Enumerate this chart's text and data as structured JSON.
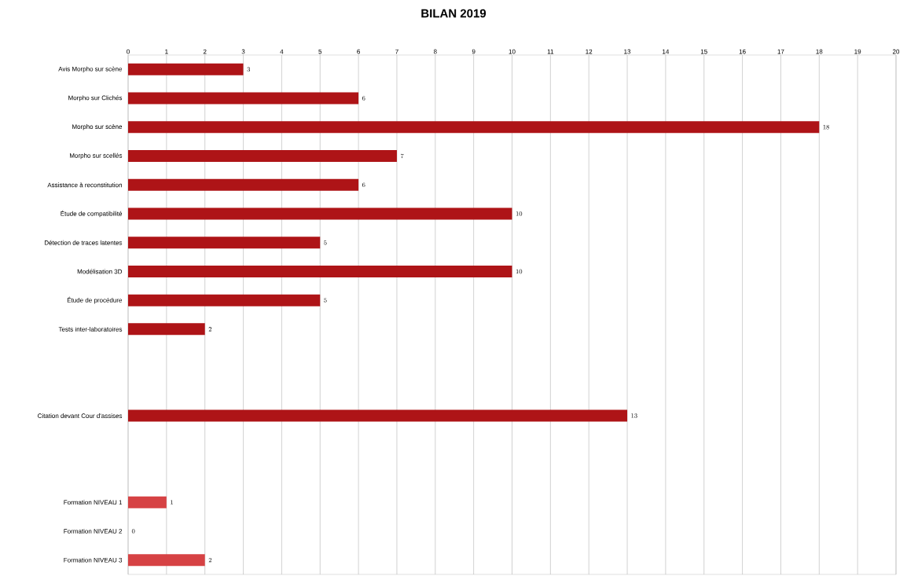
{
  "chart_data": {
    "type": "bar",
    "orientation": "horizontal",
    "title": "BILAN 2019",
    "categories": [
      "Avis Morpho sur scène",
      "Morpho sur Clichés",
      "Morpho sur scène",
      "Morpho sur scellés",
      "Assistance à reconstitution",
      "Étude de compatibilité",
      "Détection de traces latentes",
      "Modélisation 3D",
      "Étude de procédure",
      "Tests inter-laboratoires",
      null,
      null,
      "Citation devant Cour d'assises",
      null,
      null,
      "Formation NIVEAU 1",
      "Formation NIVEAU 2",
      "Formation NIVEAU 3"
    ],
    "values": [
      3,
      6,
      18,
      7,
      6,
      10,
      5,
      10,
      5,
      2,
      null,
      null,
      13,
      null,
      null,
      1,
      0,
      2
    ],
    "colors": [
      "#ae1417",
      "#ae1417",
      "#ae1417",
      "#ae1417",
      "#ae1417",
      "#ae1417",
      "#ae1417",
      "#ae1417",
      "#ae1417",
      "#ae1417",
      null,
      null,
      "#ae1417",
      null,
      null,
      "#d64244",
      "#d64244",
      "#d64244"
    ],
    "xlim": [
      0,
      20
    ],
    "xticks": [
      0,
      1,
      2,
      3,
      4,
      5,
      6,
      7,
      8,
      9,
      10,
      11,
      12,
      13,
      14,
      15,
      16,
      17,
      18,
      19,
      20
    ],
    "grid": "x",
    "data_labels": true
  }
}
